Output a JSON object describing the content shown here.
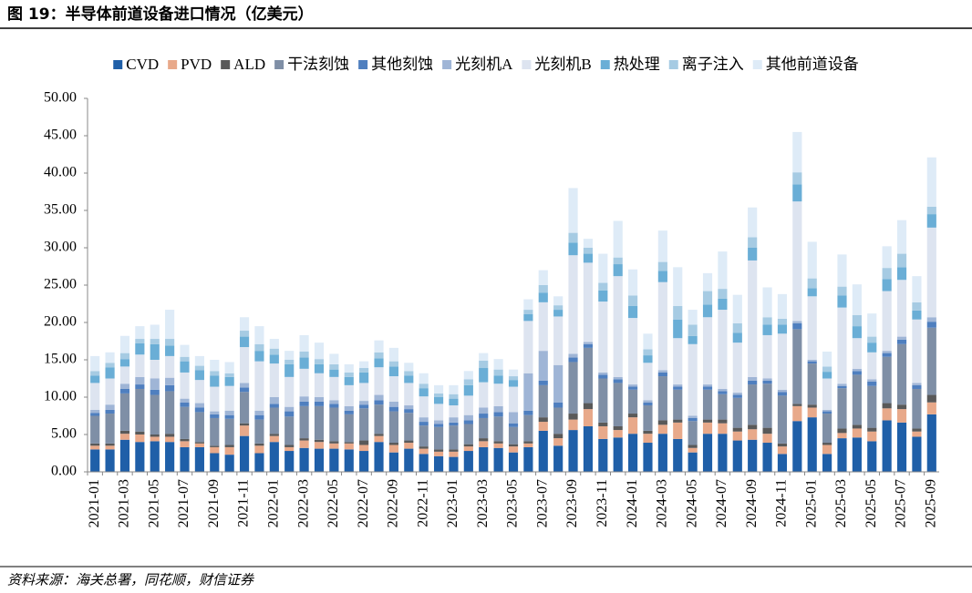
{
  "chart_data": {
    "type": "stacked_bar",
    "title": "图 19：半导体前道设备进口情况（亿美元）",
    "source": "资料来源：海关总署，同花顺，财信证券",
    "categories": [
      "2021-01",
      null,
      "2021-03",
      null,
      "2021-05",
      null,
      "2021-07",
      null,
      "2021-09",
      null,
      "2021-11",
      null,
      "2022-01",
      null,
      "2022-03",
      null,
      "2022-05",
      null,
      "2022-07",
      null,
      "2022-09",
      null,
      "2022-11",
      null,
      "2023-01",
      null,
      "2023-03",
      null,
      "2023-05",
      null,
      "2023-07",
      null,
      "2023-09",
      null,
      "2023-11",
      null,
      "2024-01",
      null,
      "2024-03",
      null,
      "2024-05",
      null,
      "2024-07",
      null,
      "2024-09",
      null,
      "2024-11",
      null,
      "2025-01",
      null,
      "2025-03",
      null,
      "2025-05",
      null,
      "2025-07",
      null,
      "2025-09"
    ],
    "ylim": [
      0,
      50
    ],
    "yticks": [
      {
        "value": 0,
        "label": "0.00"
      },
      {
        "value": 5,
        "label": "5.00"
      },
      {
        "value": 10,
        "label": "10.00"
      },
      {
        "value": 15,
        "label": "15.00"
      },
      {
        "value": 20,
        "label": "20.00"
      },
      {
        "value": 25,
        "label": "25.00"
      },
      {
        "value": 30,
        "label": "30.00"
      },
      {
        "value": 35,
        "label": "35.00"
      },
      {
        "value": 40,
        "label": "40.00"
      },
      {
        "value": 45,
        "label": "45.00"
      },
      {
        "value": 50,
        "label": "50.00"
      }
    ],
    "grid": false,
    "legend": "top",
    "series": [
      {
        "name": "CVD",
        "color": "#1f5fa8",
        "values": [
          3.0,
          3.0,
          4.3,
          4.0,
          4.1,
          4.0,
          3.3,
          3.3,
          2.5,
          2.3,
          4.8,
          2.5,
          4.0,
          2.8,
          3.2,
          3.1,
          3.1,
          3.0,
          2.8,
          4.0,
          2.6,
          3.1,
          2.4,
          2.1,
          2.0,
          2.8,
          3.3,
          3.2,
          2.6,
          3.3,
          5.5,
          3.5,
          5.6,
          6.1,
          4.4,
          4.6,
          5.1,
          3.9,
          5.1,
          4.4,
          2.6,
          5.1,
          5.1,
          4.2,
          4.3,
          3.9,
          2.4,
          6.8,
          7.3,
          2.4,
          4.5,
          4.6,
          4.1,
          6.9,
          6.6,
          4.7,
          7.7
        ]
      },
      {
        "name": "PVD",
        "color": "#e8a98a",
        "values": [
          0.5,
          0.5,
          0.8,
          1.0,
          0.6,
          0.7,
          0.8,
          0.5,
          0.8,
          1.0,
          1.4,
          1.0,
          0.8,
          0.5,
          1.0,
          0.9,
          0.7,
          0.8,
          0.8,
          0.8,
          1.0,
          0.8,
          0.7,
          0.6,
          0.7,
          0.6,
          0.8,
          0.6,
          0.8,
          0.5,
          1.2,
          1.0,
          1.4,
          2.3,
          1.7,
          1.0,
          2.2,
          1.2,
          1.2,
          2.2,
          0.6,
          1.5,
          1.4,
          1.2,
          1.4,
          1.2,
          1.0,
          2.0,
          1.3,
          1.2,
          0.7,
          1.2,
          1.3,
          1.6,
          1.8,
          0.7,
          1.6
        ]
      },
      {
        "name": "ALD",
        "color": "#595959",
        "values": [
          0.3,
          0.3,
          0.4,
          0.4,
          0.3,
          0.4,
          0.3,
          0.2,
          0.2,
          0.3,
          0.3,
          0.3,
          0.3,
          0.3,
          0.3,
          0.3,
          0.3,
          0.2,
          0.6,
          0.3,
          0.3,
          0.3,
          0.3,
          0.3,
          0.3,
          0.3,
          0.4,
          0.3,
          0.3,
          0.3,
          0.6,
          0.6,
          0.8,
          0.8,
          0.5,
          0.5,
          0.5,
          0.4,
          0.6,
          0.4,
          0.4,
          0.4,
          0.5,
          0.5,
          0.6,
          0.8,
          0.4,
          0.3,
          0.4,
          0.3,
          0.6,
          0.5,
          0.5,
          0.7,
          0.6,
          0.4,
          1.0
        ]
      },
      {
        "name": "干法刻蚀",
        "color": "#7f8fa6",
        "values": [
          3.7,
          4.0,
          5.0,
          5.7,
          5.3,
          5.7,
          4.3,
          4.0,
          3.7,
          3.5,
          4.2,
          3.2,
          3.5,
          3.8,
          4.3,
          4.5,
          4.5,
          3.7,
          4.3,
          3.9,
          4.2,
          3.7,
          2.8,
          3.0,
          3.2,
          2.7,
          2.7,
          3.3,
          2.3,
          3.5,
          4.3,
          3.5,
          6.9,
          7.4,
          5.9,
          5.8,
          3.2,
          3.4,
          5.9,
          4.0,
          3.2,
          4.0,
          3.4,
          4.0,
          5.4,
          5.9,
          6.4,
          10.0,
          5.5,
          3.9,
          5.4,
          6.7,
          5.6,
          6.2,
          8.1,
          5.3,
          9.0
        ]
      },
      {
        "name": "其他刻蚀",
        "color": "#4f7fbf",
        "values": [
          0.4,
          0.5,
          0.6,
          0.6,
          0.7,
          0.8,
          0.6,
          0.6,
          0.5,
          0.5,
          0.6,
          0.6,
          0.5,
          0.7,
          0.6,
          0.6,
          0.5,
          0.5,
          0.5,
          0.6,
          0.6,
          0.5,
          0.5,
          0.4,
          0.4,
          0.5,
          0.6,
          0.6,
          0.5,
          0.6,
          0.6,
          0.7,
          0.6,
          0.5,
          0.5,
          0.5,
          0.4,
          0.4,
          0.5,
          0.4,
          0.4,
          0.4,
          0.4,
          0.4,
          0.5,
          0.4,
          0.5,
          0.8,
          0.3,
          0.3,
          0.3,
          0.5,
          0.6,
          0.5,
          0.6,
          0.5,
          0.8
        ]
      },
      {
        "name": "光刻机A",
        "color": "#9fb5d6",
        "values": [
          0.4,
          0.7,
          0.7,
          1.0,
          1.5,
          1.0,
          0.5,
          0.6,
          0.4,
          0.6,
          0.6,
          0.6,
          0.9,
          0.6,
          0.7,
          0.6,
          0.5,
          0.6,
          0.5,
          0.7,
          0.7,
          0.5,
          0.6,
          0.5,
          0.7,
          0.7,
          0.8,
          0.8,
          1.5,
          5.0,
          4.0,
          5.0,
          0.5,
          0.3,
          0.3,
          0.3,
          0.3,
          0.3,
          0.3,
          0.3,
          0.3,
          0.3,
          0.3,
          0.3,
          0.5,
          0.3,
          0.3,
          0.3,
          0.2,
          0.2,
          0.3,
          0.3,
          0.3,
          0.3,
          0.4,
          0.3,
          0.6
        ]
      },
      {
        "name": "光刻机B",
        "color": "#dde4f0",
        "values": [
          3.6,
          3.5,
          2.3,
          3.0,
          2.5,
          2.9,
          3.5,
          3.1,
          3.3,
          3.3,
          4.8,
          6.6,
          4.5,
          4.0,
          3.7,
          3.2,
          3.1,
          2.8,
          2.4,
          3.7,
          3.4,
          3.0,
          2.8,
          2.2,
          1.6,
          2.6,
          3.4,
          3.0,
          3.4,
          7.0,
          6.5,
          6.5,
          13.2,
          10.6,
          9.5,
          13.5,
          8.9,
          5.0,
          11.8,
          6.2,
          9.6,
          9.0,
          10.6,
          6.7,
          15.6,
          5.8,
          7.5,
          16.0,
          8.5,
          4.2,
          10.2,
          4.1,
          3.6,
          8.0,
          7.6,
          8.5,
          12.0
        ]
      },
      {
        "name": "热处理",
        "color": "#6aaed6",
        "values": [
          1.0,
          1.5,
          1.0,
          1.5,
          2.1,
          1.4,
          1.5,
          1.3,
          1.5,
          1.2,
          1.4,
          1.4,
          1.2,
          1.7,
          1.5,
          1.2,
          1.0,
          1.1,
          1.4,
          1.2,
          1.3,
          1.0,
          1.1,
          0.9,
          0.9,
          1.4,
          1.9,
          1.1,
          0.9,
          0.9,
          1.3,
          0.9,
          1.7,
          1.2,
          1.5,
          1.6,
          1.6,
          1.0,
          1.5,
          2.5,
          1.1,
          1.7,
          1.5,
          1.3,
          1.7,
          1.4,
          1.2,
          2.3,
          1.1,
          0.9,
          1.6,
          1.6,
          1.3,
          1.6,
          1.7,
          1.2,
          1.8
        ]
      },
      {
        "name": "离子注入",
        "color": "#a6cbe3",
        "values": [
          0.6,
          0.6,
          0.8,
          0.6,
          0.7,
          0.9,
          0.6,
          0.6,
          0.6,
          0.5,
          0.8,
          0.9,
          0.8,
          0.6,
          0.8,
          0.7,
          0.7,
          0.6,
          0.6,
          0.8,
          0.7,
          0.6,
          0.6,
          0.5,
          0.6,
          0.8,
          1.0,
          0.8,
          0.5,
          0.6,
          1.0,
          0.6,
          1.3,
          0.8,
          1.0,
          0.9,
          1.4,
          0.8,
          1.2,
          1.8,
          1.5,
          1.8,
          1.3,
          1.3,
          1.4,
          1.0,
          0.8,
          1.6,
          1.3,
          0.7,
          1.2,
          1.5,
          0.8,
          1.5,
          1.8,
          1.1,
          1.0
        ]
      },
      {
        "name": "其他前道设备",
        "color": "#deebf7",
        "values": [
          2.0,
          1.4,
          2.3,
          1.7,
          1.9,
          3.9,
          1.6,
          1.3,
          1.5,
          1.5,
          1.8,
          2.4,
          1.3,
          1.2,
          2.2,
          2.2,
          1.4,
          1.1,
          0.9,
          1.6,
          1.8,
          1.1,
          1.4,
          1.1,
          1.2,
          1.1,
          1.0,
          1.4,
          0.9,
          1.4,
          2.0,
          1.2,
          6.0,
          1.2,
          3.9,
          4.9,
          3.5,
          2.1,
          4.2,
          5.2,
          2.0,
          2.4,
          5.0,
          3.8,
          4.0,
          4.0,
          3.3,
          5.4,
          4.9,
          2.0,
          4.3,
          4.1,
          3.1,
          2.9,
          4.5,
          3.5,
          6.6
        ]
      }
    ]
  }
}
